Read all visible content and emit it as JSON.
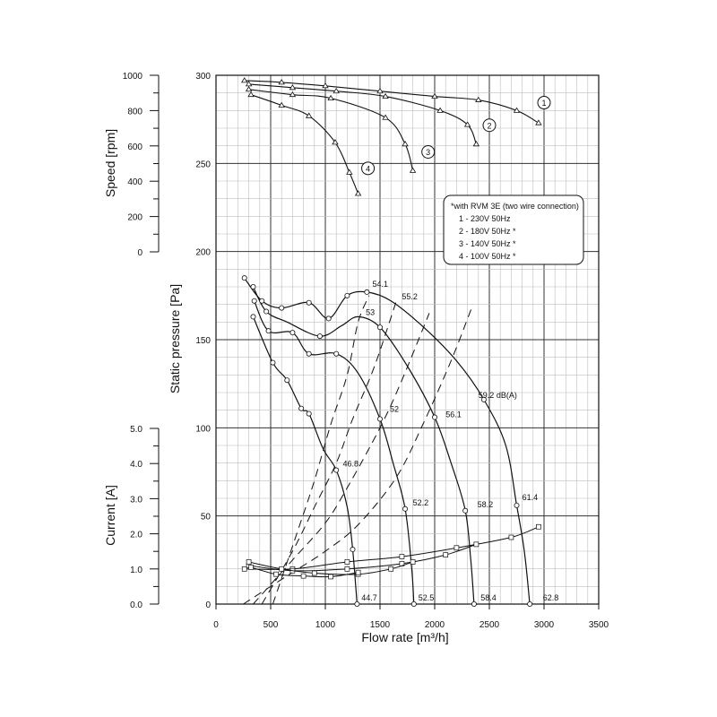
{
  "chart_data": {
    "type": "line",
    "x_axis": {
      "label": "Flow rate [m³/h]",
      "range": [
        0,
        3500
      ],
      "ticks": [
        0,
        500,
        1000,
        1500,
        2000,
        2500,
        3000,
        3500
      ]
    },
    "pressure_axis": {
      "label": "Static pressure [Pa]",
      "range": [
        0,
        300
      ],
      "ticks": [
        0,
        50,
        100,
        150,
        200,
        250,
        300
      ]
    },
    "speed_axis": {
      "label": "Speed [rpm]",
      "range": [
        0,
        1000
      ],
      "ticks": [
        0,
        200,
        400,
        600,
        800,
        1000
      ]
    },
    "current_axis": {
      "label": "Current [A]",
      "range": [
        0,
        5
      ],
      "ticks": [
        "0.0",
        "1.0",
        "2.0",
        "3.0",
        "4.0",
        "5.0"
      ]
    },
    "grid": true,
    "legend": {
      "placement": "right",
      "title": "*with RVM 3E (two wire connection)",
      "entries": [
        "1 - 230V 50Hz",
        "2 - 180V 50Hz *",
        "3 - 140V 50Hz *",
        "4 - 100V 50Hz *"
      ]
    },
    "speed_series": [
      {
        "name": "1",
        "points": [
          [
            260,
            970
          ],
          [
            600,
            960
          ],
          [
            1000,
            940
          ],
          [
            1500,
            910
          ],
          [
            2000,
            880
          ],
          [
            2400,
            860
          ],
          [
            2750,
            800
          ],
          [
            2950,
            730
          ]
        ]
      },
      {
        "name": "2",
        "points": [
          [
            300,
            950
          ],
          [
            700,
            930
          ],
          [
            1100,
            910
          ],
          [
            1550,
            880
          ],
          [
            2050,
            800
          ],
          [
            2300,
            720
          ],
          [
            2380,
            610
          ]
        ]
      },
      {
        "name": "3",
        "points": [
          [
            300,
            920
          ],
          [
            700,
            890
          ],
          [
            1050,
            870
          ],
          [
            1550,
            760
          ],
          [
            1730,
            610
          ],
          [
            1800,
            460
          ]
        ]
      },
      {
        "name": "4",
        "points": [
          [
            320,
            890
          ],
          [
            600,
            830
          ],
          [
            850,
            770
          ],
          [
            1090,
            620
          ],
          [
            1220,
            450
          ],
          [
            1300,
            330
          ]
        ]
      }
    ],
    "speed_labels": [
      {
        "text": "1",
        "x": 3000,
        "y": 845
      },
      {
        "text": "2",
        "x": 2500,
        "y": 717
      },
      {
        "text": "3",
        "x": 1940,
        "y": 566
      },
      {
        "text": "4",
        "x": 1390,
        "y": 473
      }
    ],
    "pressure_series": [
      {
        "name": "1",
        "points": [
          [
            260,
            185
          ],
          [
            420,
            172
          ],
          [
            600,
            168
          ],
          [
            850,
            171
          ],
          [
            1030,
            162
          ],
          [
            1200,
            175
          ],
          [
            1380,
            177
          ],
          [
            1600,
            172
          ],
          [
            1900,
            157
          ],
          [
            2200,
            138
          ],
          [
            2450,
            116
          ],
          [
            2650,
            90
          ],
          [
            2750,
            56
          ],
          [
            2820,
            30
          ],
          [
            2870,
            0
          ]
        ]
      },
      {
        "name": "2",
        "points": [
          [
            340,
            180
          ],
          [
            460,
            166
          ],
          [
            650,
            160
          ],
          [
            950,
            152
          ],
          [
            1150,
            158
          ],
          [
            1300,
            163
          ],
          [
            1500,
            157
          ],
          [
            1750,
            135
          ],
          [
            2000,
            106
          ],
          [
            2150,
            80
          ],
          [
            2280,
            53
          ],
          [
            2330,
            25
          ],
          [
            2360,
            0
          ]
        ]
      },
      {
        "name": "3",
        "points": [
          [
            350,
            172
          ],
          [
            480,
            155
          ],
          [
            700,
            154
          ],
          [
            850,
            142
          ],
          [
            1100,
            142
          ],
          [
            1300,
            131
          ],
          [
            1500,
            105
          ],
          [
            1620,
            80
          ],
          [
            1730,
            54
          ],
          [
            1790,
            20
          ],
          [
            1810,
            0
          ]
        ]
      },
      {
        "name": "4",
        "points": [
          [
            340,
            163
          ],
          [
            520,
            137
          ],
          [
            650,
            127
          ],
          [
            780,
            111
          ],
          [
            850,
            108
          ],
          [
            980,
            88
          ],
          [
            1100,
            76
          ],
          [
            1200,
            55
          ],
          [
            1250,
            31
          ],
          [
            1290,
            0
          ]
        ]
      }
    ],
    "pressure_markers": [
      [
        260,
        185
      ],
      [
        420,
        172
      ],
      [
        600,
        168
      ],
      [
        850,
        171
      ],
      [
        1030,
        162
      ],
      [
        1200,
        175
      ],
      [
        1380,
        177
      ],
      [
        340,
        180
      ],
      [
        460,
        166
      ],
      [
        950,
        152
      ],
      [
        1500,
        157
      ],
      [
        2450,
        116
      ],
      [
        2750,
        56
      ],
      [
        2870,
        0
      ],
      [
        350,
        172
      ],
      [
        480,
        155
      ],
      [
        700,
        154
      ],
      [
        850,
        142
      ],
      [
        1100,
        142
      ],
      [
        2000,
        106
      ],
      [
        2280,
        53
      ],
      [
        2360,
        0
      ],
      [
        340,
        163
      ],
      [
        520,
        137
      ],
      [
        650,
        127
      ],
      [
        780,
        111
      ],
      [
        850,
        108
      ],
      [
        1100,
        76
      ],
      [
        1500,
        105
      ],
      [
        1730,
        54
      ],
      [
        1810,
        0
      ],
      [
        1250,
        31
      ],
      [
        1290,
        0
      ]
    ],
    "noise_lines": [
      {
        "name": "44.7",
        "points": [
          [
            250,
            0
          ],
          [
            700,
            18
          ],
          [
            1000,
            30
          ],
          [
            1300,
            45
          ],
          [
            1650,
            72
          ],
          [
            1900,
            103
          ],
          [
            2150,
            138
          ],
          [
            2350,
            170
          ]
        ]
      },
      {
        "name": "52.5",
        "points": [
          [
            340,
            0
          ],
          [
            700,
            25
          ],
          [
            1000,
            46
          ],
          [
            1200,
            66
          ],
          [
            1500,
            100
          ],
          [
            1700,
            127
          ],
          [
            1950,
            165
          ]
        ]
      },
      {
        "name": "58.4",
        "points": [
          [
            420,
            0
          ],
          [
            700,
            30
          ],
          [
            900,
            55
          ],
          [
            1100,
            80
          ],
          [
            1250,
            105
          ],
          [
            1450,
            135
          ],
          [
            1650,
            172
          ]
        ]
      },
      {
        "name": "62.8",
        "points": [
          [
            520,
            0
          ],
          [
            750,
            42
          ],
          [
            900,
            70
          ],
          [
            1050,
            102
          ],
          [
            1200,
            130
          ],
          [
            1300,
            160
          ],
          [
            1400,
            175
          ]
        ]
      }
    ],
    "current_series": [
      {
        "name": "1",
        "points": [
          [
            260,
            1.0
          ],
          [
            700,
            1.0
          ],
          [
            1200,
            1.2
          ],
          [
            1700,
            1.35
          ],
          [
            2200,
            1.6
          ],
          [
            2700,
            1.9
          ],
          [
            2950,
            2.2
          ]
        ]
      },
      {
        "name": "2",
        "points": [
          [
            300,
            1.1
          ],
          [
            700,
            0.95
          ],
          [
            1200,
            1.0
          ],
          [
            1700,
            1.15
          ],
          [
            2100,
            1.4
          ],
          [
            2380,
            1.7
          ]
        ]
      },
      {
        "name": "3",
        "points": [
          [
            300,
            1.2
          ],
          [
            600,
            1.0
          ],
          [
            900,
            0.88
          ],
          [
            1300,
            0.85
          ],
          [
            1600,
            1.0
          ],
          [
            1800,
            1.2
          ]
        ]
      },
      {
        "name": "4",
        "points": [
          [
            320,
            1.05
          ],
          [
            550,
            0.85
          ],
          [
            800,
            0.8
          ],
          [
            1050,
            0.78
          ],
          [
            1300,
            0.9
          ]
        ]
      }
    ],
    "pressure_labels": [
      {
        "text": "54.1",
        "x": 1430,
        "y": 180
      },
      {
        "text": "55.2",
        "x": 1700,
        "y": 173
      },
      {
        "text": "53",
        "x": 1370,
        "y": 164
      },
      {
        "text": "59.2 dB(A)",
        "x": 2400,
        "y": 117
      },
      {
        "text": "56.1",
        "x": 2100,
        "y": 106
      },
      {
        "text": "52",
        "x": 1590,
        "y": 109
      },
      {
        "text": "46.8",
        "x": 1160,
        "y": 78
      },
      {
        "text": "61.4",
        "x": 2800,
        "y": 59
      },
      {
        "text": "52.2",
        "x": 1800,
        "y": 56
      },
      {
        "text": "58.2",
        "x": 2390,
        "y": 55
      },
      {
        "text": "44.7",
        "x": 1330,
        "y": 2
      },
      {
        "text": "52.5",
        "x": 1850,
        "y": 2
      },
      {
        "text": "58.4",
        "x": 2420,
        "y": 2
      },
      {
        "text": "62.8",
        "x": 2990,
        "y": 2
      }
    ]
  }
}
